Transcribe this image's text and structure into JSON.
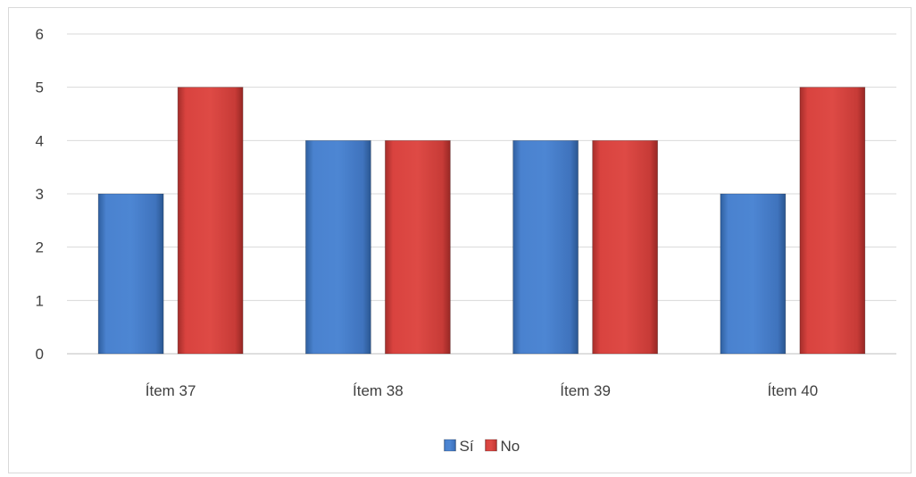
{
  "chart_data": {
    "type": "bar",
    "categories": [
      "Ítem 37",
      "Ítem 38",
      "Ítem 39",
      "Ítem 40"
    ],
    "series": [
      {
        "name": "Sí",
        "values": [
          3,
          4,
          4,
          3
        ],
        "color": "#4a7fc9"
      },
      {
        "name": "No",
        "values": [
          5,
          4,
          4,
          5
        ],
        "color": "#d9433f"
      }
    ],
    "ylim": [
      0,
      6
    ],
    "yticks": [
      0,
      1,
      2,
      3,
      4,
      5,
      6
    ],
    "grid": true,
    "legend_position": "bottom",
    "title": "",
    "xlabel": "",
    "ylabel": ""
  }
}
